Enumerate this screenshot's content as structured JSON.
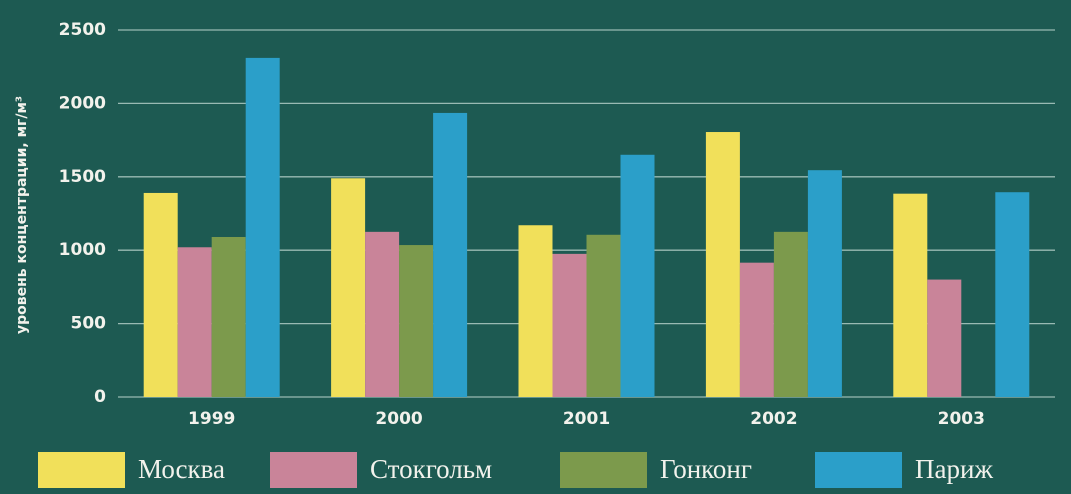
{
  "chart_data": {
    "type": "bar",
    "y_label": "уровень концентрации, мг/м³",
    "categories": [
      "1999",
      "2000",
      "2001",
      "2002",
      "2003"
    ],
    "series": [
      {
        "name": "Москва",
        "color": "#f1e05a",
        "values": [
          1390,
          1490,
          1170,
          1805,
          1385
        ]
      },
      {
        "name": "Стокгольм",
        "color": "#c98499",
        "values": [
          1020,
          1125,
          975,
          915,
          800
        ]
      },
      {
        "name": "Гонконг",
        "color": "#7c9a4c",
        "values": [
          1090,
          1035,
          1105,
          1125,
          null
        ]
      },
      {
        "name": "Париж",
        "color": "#2b9fc9",
        "values": [
          2310,
          1935,
          1650,
          1545,
          1395
        ]
      }
    ],
    "ylim": [
      0,
      2500
    ],
    "yticks": [
      0,
      500,
      1000,
      1500,
      2000,
      2500
    ],
    "grid": true
  }
}
